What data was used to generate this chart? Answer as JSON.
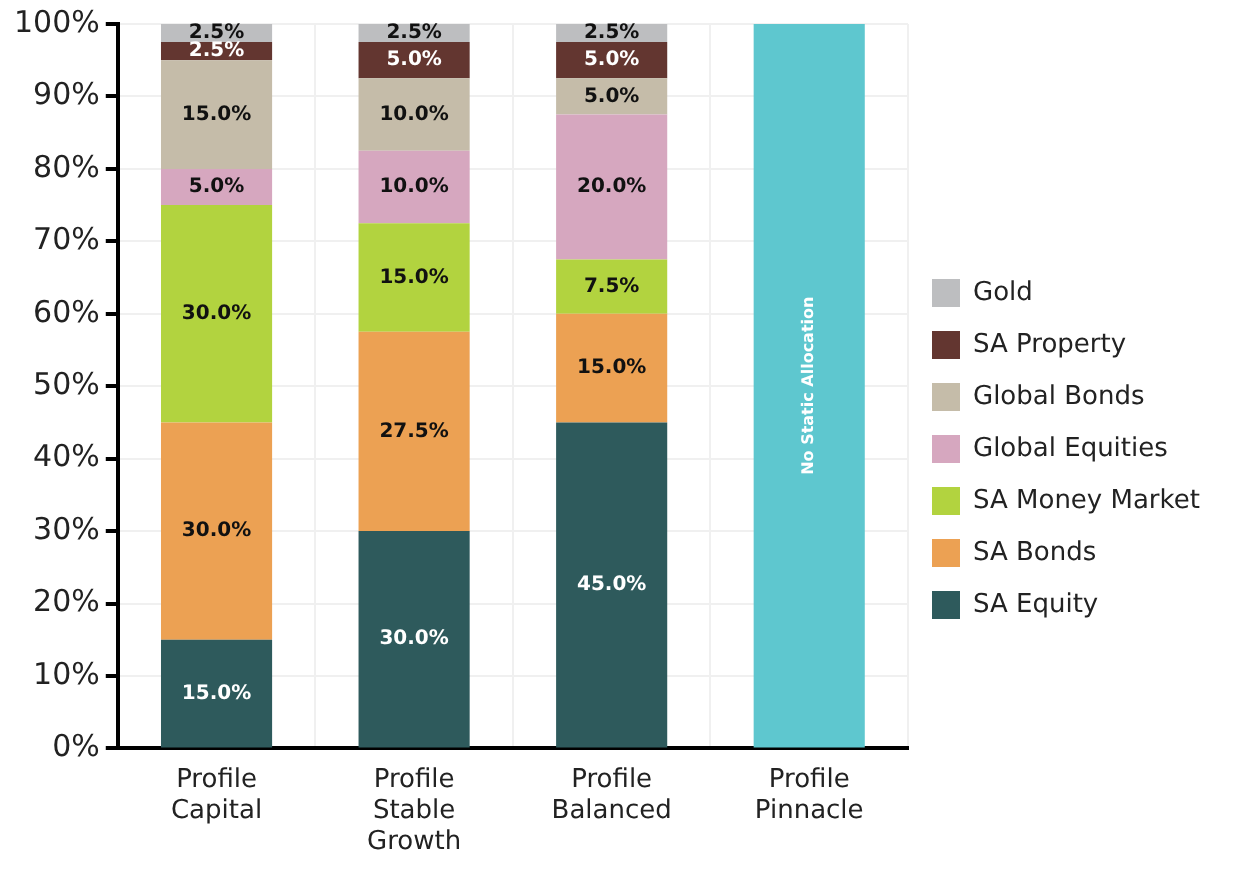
{
  "chart_data": {
    "type": "bar",
    "stacked": true,
    "categories": [
      "Profile Capital",
      "Profile Stable Growth",
      "Profile Balanced",
      "Profile Pinnacle"
    ],
    "ylim": [
      0,
      100
    ],
    "yticks": [
      {
        "value": 0,
        "label": "0%"
      },
      {
        "value": 10,
        "label": "10%"
      },
      {
        "value": 20,
        "label": "20%"
      },
      {
        "value": 30,
        "label": "30%"
      },
      {
        "value": 40,
        "label": "40%"
      },
      {
        "value": 50,
        "label": "50%"
      },
      {
        "value": 60,
        "label": "60%"
      },
      {
        "value": 70,
        "label": "70%"
      },
      {
        "value": 80,
        "label": "80%"
      },
      {
        "value": 90,
        "label": "90%"
      },
      {
        "value": 100,
        "label": "100%"
      }
    ],
    "grid": true,
    "legend": "right",
    "series": [
      {
        "name": "SA Equity",
        "color": "#2e5a5c",
        "values": [
          15,
          30,
          45,
          null
        ],
        "value_labels": [
          "15.0%",
          "30.0%",
          "45.0%",
          null
        ]
      },
      {
        "name": "SA Bonds",
        "color": "#eca153",
        "values": [
          30,
          27.5,
          15,
          null
        ],
        "value_labels": [
          "30.0%",
          "27.5%",
          "15.0%",
          null
        ]
      },
      {
        "name": "SA Money Market",
        "color": "#b2d33f",
        "values": [
          30,
          15,
          7.5,
          null
        ],
        "value_labels": [
          "30.0%",
          "15.0%",
          "7.5%",
          null
        ]
      },
      {
        "name": "Global Equities",
        "color": "#d6a7bf",
        "values": [
          5,
          10,
          20,
          null
        ],
        "value_labels": [
          "5.0%",
          "10.0%",
          "20.0%",
          null
        ]
      },
      {
        "name": "Global Bonds",
        "color": "#c5bca9",
        "values": [
          15,
          10,
          5,
          null
        ],
        "value_labels": [
          "15.0%",
          "10.0%",
          "5.0%",
          null
        ]
      },
      {
        "name": "SA Property",
        "color": "#633630",
        "values": [
          2.5,
          5,
          5,
          null
        ],
        "value_labels": [
          "2.5%",
          "5.0%",
          "5.0%",
          null
        ]
      },
      {
        "name": "Gold",
        "color": "#bdbec0",
        "values": [
          2.5,
          2.5,
          2.5,
          null
        ],
        "value_labels": [
          "2.5%",
          "2.5%",
          "2.5%",
          null
        ]
      },
      {
        "color": "#5ec7cf",
        "values": [
          null,
          null,
          null,
          100
        ]
      }
    ],
    "annotations": [
      "No Static Allocation"
    ]
  }
}
